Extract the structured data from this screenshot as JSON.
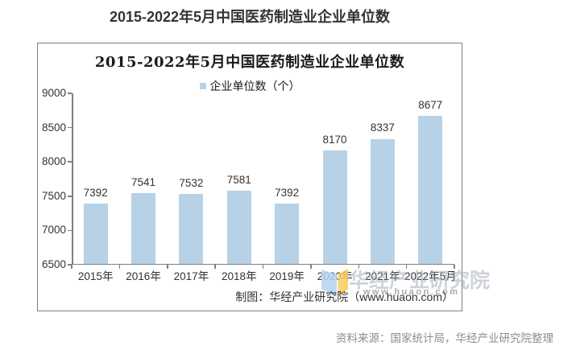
{
  "page": {
    "title": "2015-2022年5月中国医药制造业企业单位数",
    "source_note": "资料来源：国家统计局，华经产业研究院整理"
  },
  "chart_data": {
    "type": "bar",
    "title": "2015-2022年5月中国医药制造业企业单位数",
    "legend": "企业单位数（个）",
    "legend_position": "top",
    "categories": [
      "2015年",
      "2016年",
      "2017年",
      "2018年",
      "2019年",
      "2020年",
      "2021年",
      "2022年5月"
    ],
    "values": [
      7392,
      7541,
      7532,
      7581,
      7392,
      8170,
      8337,
      8677
    ],
    "ylim": [
      6500,
      9000
    ],
    "ytick_step": 500,
    "grid": false,
    "bar_color": "#b7d2e7",
    "axis_color": "#7f7f7f",
    "credit": "制图：华经产业研究院（www.huaon.com）"
  },
  "watermark": {
    "brand": "华经产业研究院",
    "url": "www.huaon.com",
    "logo": "huaon-logo"
  }
}
